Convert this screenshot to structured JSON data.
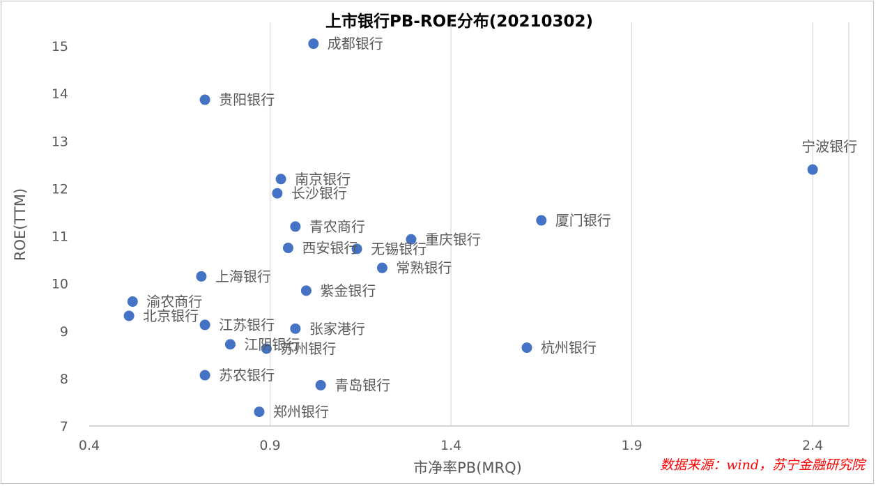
{
  "chart_data": {
    "type": "scatter",
    "title": "上市银行PB-ROE分布(20210302)",
    "xlabel": "市净率PB(MRQ)",
    "ylabel": "ROE(TTM)",
    "xlim": [
      0.4,
      2.5
    ],
    "ylim": [
      7,
      15.5
    ],
    "x_ticks": [
      0.4,
      0.9,
      1.4,
      1.9,
      2.4
    ],
    "x_tick_labels": [
      "0.4",
      "0.9",
      "1.4",
      "1.9",
      "2.4"
    ],
    "y_ticks": [
      7,
      8,
      9,
      10,
      11,
      12,
      13,
      14,
      15
    ],
    "y_tick_labels": [
      "7",
      "8",
      "9",
      "10",
      "11",
      "12",
      "13",
      "14",
      "15"
    ],
    "grid": "vertical",
    "legend": "none",
    "points": [
      {
        "label": "成都银行",
        "x": 1.02,
        "y": 15.05
      },
      {
        "label": "贵阳银行",
        "x": 0.72,
        "y": 13.87
      },
      {
        "label": "宁波银行",
        "x": 2.4,
        "y": 12.4
      },
      {
        "label": "南京银行",
        "x": 0.93,
        "y": 12.2
      },
      {
        "label": "长沙银行",
        "x": 0.92,
        "y": 11.9
      },
      {
        "label": "厦门银行",
        "x": 1.65,
        "y": 11.33
      },
      {
        "label": "青农商行",
        "x": 0.97,
        "y": 11.2
      },
      {
        "label": "重庆银行",
        "x": 1.29,
        "y": 10.93
      },
      {
        "label": "西安银行",
        "x": 0.95,
        "y": 10.75
      },
      {
        "label": "无锡银行",
        "x": 1.14,
        "y": 10.73
      },
      {
        "label": "常熟银行",
        "x": 1.21,
        "y": 10.33
      },
      {
        "label": "上海银行",
        "x": 0.71,
        "y": 10.15
      },
      {
        "label": "紫金银行",
        "x": 1.0,
        "y": 9.85
      },
      {
        "label": "渝农商行",
        "x": 0.52,
        "y": 9.62
      },
      {
        "label": "北京银行",
        "x": 0.51,
        "y": 9.32
      },
      {
        "label": "江苏银行",
        "x": 0.72,
        "y": 9.13
      },
      {
        "label": "张家港行",
        "x": 0.97,
        "y": 9.05
      },
      {
        "label": "江阴银行",
        "x": 0.79,
        "y": 8.72
      },
      {
        "label": "苏州银行",
        "x": 0.89,
        "y": 8.63
      },
      {
        "label": "杭州银行",
        "x": 1.61,
        "y": 8.65
      },
      {
        "label": "苏农银行",
        "x": 0.72,
        "y": 8.07
      },
      {
        "label": "青岛银行",
        "x": 1.04,
        "y": 7.86
      },
      {
        "label": "郑州银行",
        "x": 0.87,
        "y": 7.3
      }
    ],
    "source_note": "数据来源：wind，苏宁金融研究院",
    "colors": {
      "point": "#4472c4",
      "text": "#595959",
      "grid": "#d9d9d9",
      "axis": "#bfbfbf",
      "source": "#ff0000"
    }
  }
}
